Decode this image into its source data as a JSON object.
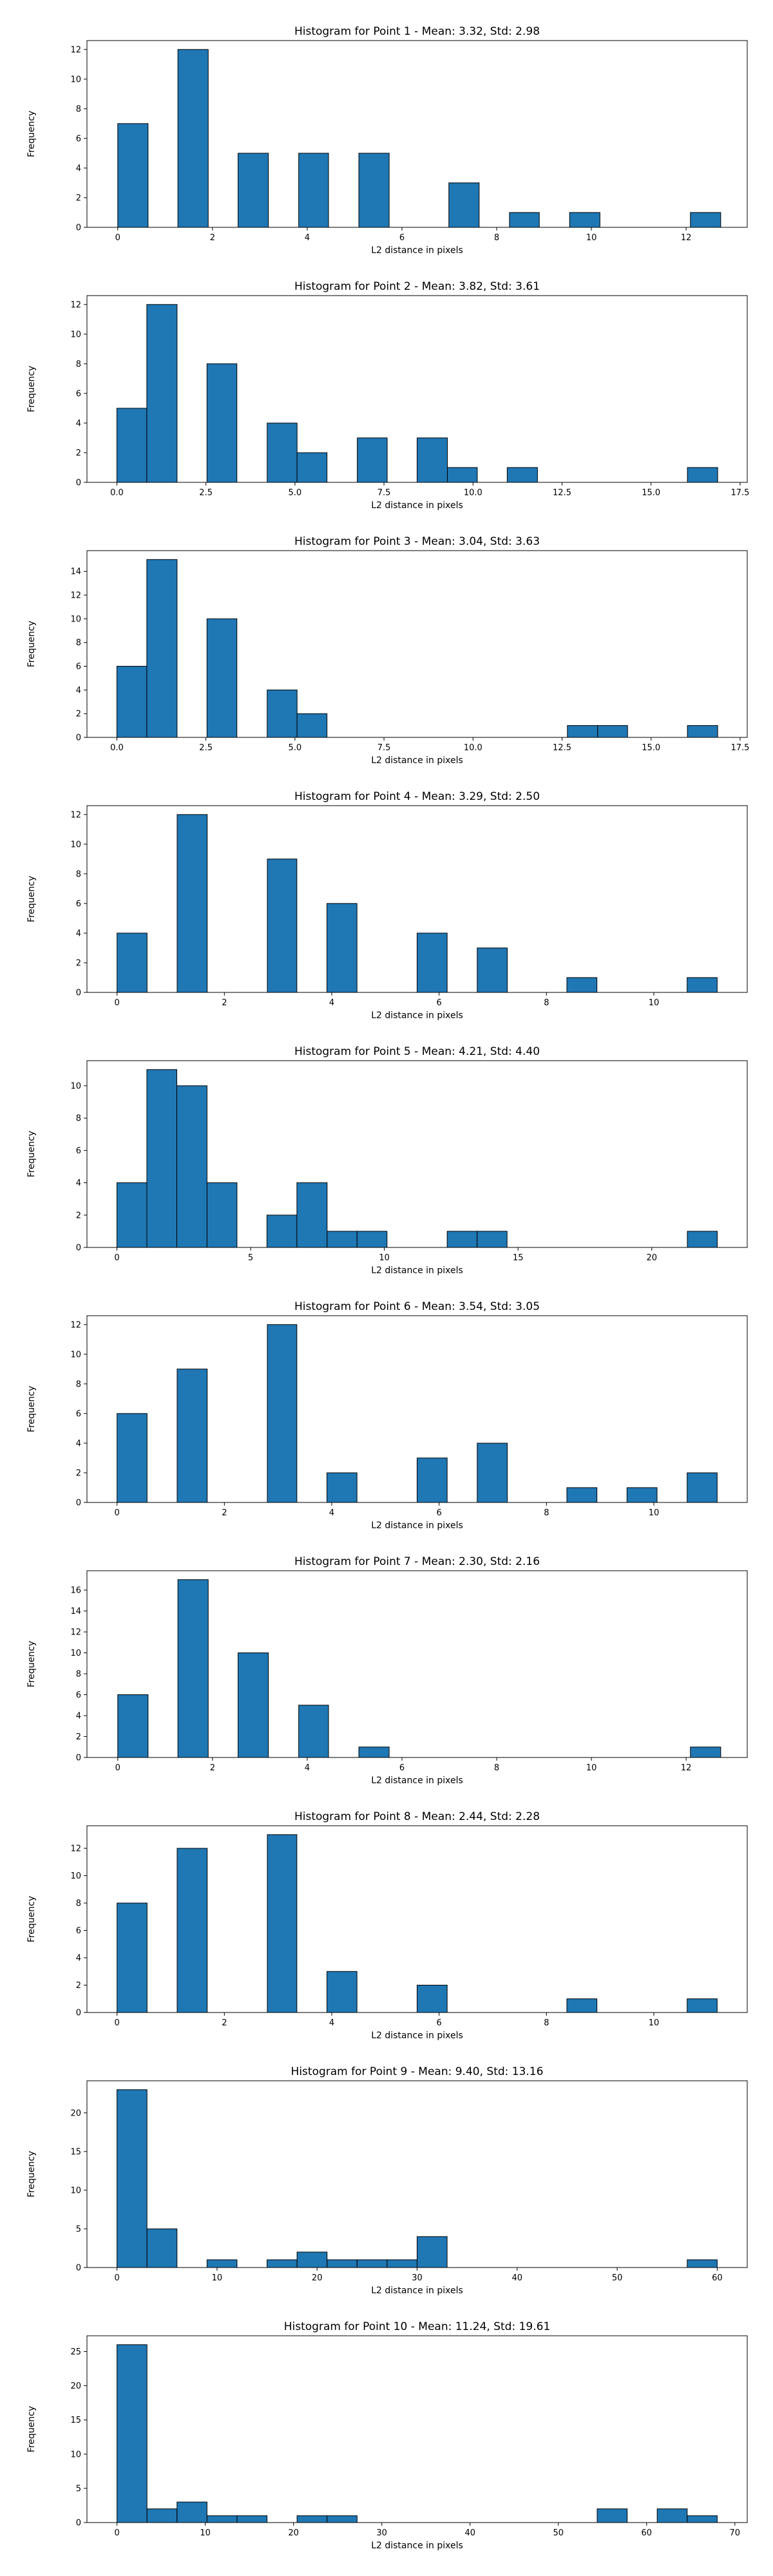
{
  "colors": {
    "bar_fill": "#1f77b4",
    "bar_edge": "#000000"
  },
  "chart_data": [
    {
      "type": "bar",
      "title": "Histogram for Point 1 - Mean: 3.32, Std: 2.98",
      "xlabel": "L2 distance in pixels",
      "ylabel": "Frequency",
      "xlim": [
        -0.65,
        13.29
      ],
      "ylim": [
        0,
        12.6
      ],
      "xticks": [
        0,
        2,
        4,
        6,
        8,
        10,
        12
      ],
      "yticks": [
        0,
        2,
        4,
        6,
        8,
        10,
        12
      ],
      "xtick_labels": [
        "0",
        "2",
        "4",
        "6",
        "8",
        "10",
        "12"
      ],
      "bins": [
        [
          0,
          0.64,
          7
        ],
        [
          1.27,
          1.91,
          12
        ],
        [
          2.54,
          3.18,
          5
        ],
        [
          3.82,
          4.45,
          5
        ],
        [
          5.09,
          5.73,
          5
        ],
        [
          6.99,
          7.63,
          3
        ],
        [
          8.27,
          8.9,
          1
        ],
        [
          9.54,
          10.18,
          1
        ],
        [
          12.09,
          12.73,
          1
        ]
      ]
    },
    {
      "type": "bar",
      "title": "Histogram for Point 2 - Mean: 3.82, Std: 3.61",
      "xlabel": "L2 distance in pixels",
      "ylabel": "Frequency",
      "xlim": [
        -0.84,
        17.7
      ],
      "ylim": [
        0,
        12.6
      ],
      "xticks": [
        0,
        2.5,
        5,
        7.5,
        10,
        12.5,
        15,
        17.5
      ],
      "yticks": [
        0,
        2,
        4,
        6,
        8,
        10,
        12
      ],
      "xtick_labels": [
        "0.0",
        "2.5",
        "5.0",
        "7.5",
        "10.0",
        "12.5",
        "15.0",
        "17.5"
      ],
      "bins": [
        [
          0,
          0.84,
          5
        ],
        [
          0.84,
          1.69,
          12
        ],
        [
          2.53,
          3.37,
          8
        ],
        [
          4.22,
          5.06,
          4
        ],
        [
          5.06,
          5.9,
          2
        ],
        [
          6.75,
          7.59,
          3
        ],
        [
          8.43,
          9.28,
          3
        ],
        [
          9.28,
          10.12,
          1
        ],
        [
          10.96,
          11.81,
          1
        ],
        [
          16.02,
          16.87,
          1
        ]
      ]
    },
    {
      "type": "bar",
      "title": "Histogram for Point 3 - Mean: 3.04, Std: 3.63",
      "xlabel": "L2 distance in pixels",
      "ylabel": "Frequency",
      "xlim": [
        -0.84,
        17.7
      ],
      "ylim": [
        0,
        15.75
      ],
      "xticks": [
        0,
        2.5,
        5,
        7.5,
        10,
        12.5,
        15,
        17.5
      ],
      "yticks": [
        0,
        2,
        4,
        6,
        8,
        10,
        12,
        14
      ],
      "xtick_labels": [
        "0.0",
        "2.5",
        "5.0",
        "7.5",
        "10.0",
        "12.5",
        "15.0",
        "17.5"
      ],
      "bins": [
        [
          0,
          0.84,
          6
        ],
        [
          0.84,
          1.69,
          15
        ],
        [
          2.53,
          3.37,
          10
        ],
        [
          4.22,
          5.06,
          4
        ],
        [
          5.06,
          5.9,
          2
        ],
        [
          12.65,
          13.5,
          1
        ],
        [
          13.5,
          14.34,
          1
        ],
        [
          16.02,
          16.87,
          1
        ]
      ]
    },
    {
      "type": "bar",
      "title": "Histogram for Point 4 - Mean: 3.29, Std: 2.50",
      "xlabel": "L2 distance in pixels",
      "ylabel": "Frequency",
      "xlim": [
        -0.56,
        11.74
      ],
      "ylim": [
        0,
        12.6
      ],
      "xticks": [
        0,
        2,
        4,
        6,
        8,
        10
      ],
      "yticks": [
        0,
        2,
        4,
        6,
        8,
        10,
        12
      ],
      "xtick_labels": [
        "0",
        "2",
        "4",
        "6",
        "8",
        "10"
      ],
      "bins": [
        [
          0,
          0.56,
          4
        ],
        [
          1.12,
          1.68,
          12
        ],
        [
          2.8,
          3.35,
          9
        ],
        [
          3.91,
          4.47,
          6
        ],
        [
          5.59,
          6.15,
          4
        ],
        [
          6.71,
          7.27,
          3
        ],
        [
          8.38,
          8.94,
          1
        ],
        [
          10.62,
          11.18,
          1
        ]
      ]
    },
    {
      "type": "bar",
      "title": "Histogram for Point 5 - Mean: 4.21, Std: 4.40",
      "xlabel": "L2 distance in pixels",
      "ylabel": "Frequency",
      "xlim": [
        -1.12,
        23.57
      ],
      "ylim": [
        0,
        11.55
      ],
      "xticks": [
        0,
        5,
        10,
        15,
        20
      ],
      "yticks": [
        0,
        2,
        4,
        6,
        8,
        10
      ],
      "xtick_labels": [
        "0",
        "5",
        "10",
        "15",
        "20"
      ],
      "bins": [
        [
          0,
          1.12,
          4
        ],
        [
          1.12,
          2.24,
          11
        ],
        [
          2.24,
          3.37,
          10
        ],
        [
          3.37,
          4.49,
          4
        ],
        [
          5.61,
          6.73,
          2
        ],
        [
          6.73,
          7.86,
          4
        ],
        [
          7.86,
          8.98,
          1
        ],
        [
          8.98,
          10.1,
          1
        ],
        [
          12.35,
          13.47,
          1
        ],
        [
          13.47,
          14.59,
          1
        ],
        [
          21.33,
          22.45,
          1
        ]
      ]
    },
    {
      "type": "bar",
      "title": "Histogram for Point 6 - Mean: 3.54, Std: 3.05",
      "xlabel": "L2 distance in pixels",
      "ylabel": "Frequency",
      "xlim": [
        -0.56,
        11.74
      ],
      "ylim": [
        0,
        12.6
      ],
      "xticks": [
        0,
        2,
        4,
        6,
        8,
        10
      ],
      "yticks": [
        0,
        2,
        4,
        6,
        8,
        10,
        12
      ],
      "xtick_labels": [
        "0",
        "2",
        "4",
        "6",
        "8",
        "10"
      ],
      "bins": [
        [
          0,
          0.56,
          6
        ],
        [
          1.12,
          1.68,
          9
        ],
        [
          2.8,
          3.35,
          12
        ],
        [
          3.91,
          4.47,
          2
        ],
        [
          5.59,
          6.15,
          3
        ],
        [
          6.71,
          7.27,
          4
        ],
        [
          8.38,
          8.94,
          1
        ],
        [
          9.5,
          10.06,
          1
        ],
        [
          10.62,
          11.18,
          2
        ]
      ]
    },
    {
      "type": "bar",
      "title": "Histogram for Point 7 - Mean: 2.30, Std: 2.16",
      "xlabel": "L2 distance in pixels",
      "ylabel": "Frequency",
      "xlim": [
        -0.65,
        13.29
      ],
      "ylim": [
        0,
        17.85
      ],
      "xticks": [
        0,
        2,
        4,
        6,
        8,
        10,
        12
      ],
      "yticks": [
        0,
        2,
        4,
        6,
        8,
        10,
        12,
        14,
        16
      ],
      "xtick_labels": [
        "0",
        "2",
        "4",
        "6",
        "8",
        "10",
        "12"
      ],
      "bins": [
        [
          0,
          0.64,
          6
        ],
        [
          1.27,
          1.91,
          17
        ],
        [
          2.54,
          3.18,
          10
        ],
        [
          3.82,
          4.45,
          5
        ],
        [
          5.09,
          5.73,
          1
        ],
        [
          12.09,
          12.73,
          1
        ]
      ]
    },
    {
      "type": "bar",
      "title": "Histogram for Point 8 - Mean: 2.44, Std: 2.28",
      "xlabel": "L2 distance in pixels",
      "ylabel": "Frequency",
      "xlim": [
        -0.56,
        11.74
      ],
      "ylim": [
        0,
        13.65
      ],
      "xticks": [
        0,
        2,
        4,
        6,
        8,
        10
      ],
      "yticks": [
        0,
        2,
        4,
        6,
        8,
        10,
        12
      ],
      "xtick_labels": [
        "0",
        "2",
        "4",
        "6",
        "8",
        "10"
      ],
      "bins": [
        [
          0,
          0.56,
          8
        ],
        [
          1.12,
          1.68,
          12
        ],
        [
          2.8,
          3.35,
          13
        ],
        [
          3.91,
          4.47,
          3
        ],
        [
          5.59,
          6.15,
          2
        ],
        [
          8.38,
          8.94,
          1
        ],
        [
          10.62,
          11.18,
          1
        ]
      ]
    },
    {
      "type": "bar",
      "title": "Histogram for Point 9 - Mean: 9.40, Std: 13.16",
      "xlabel": "L2 distance in pixels",
      "ylabel": "Frequency",
      "xlim": [
        -3.0,
        63.0
      ],
      "ylim": [
        0,
        24.15
      ],
      "xticks": [
        0,
        10,
        20,
        30,
        40,
        50,
        60
      ],
      "yticks": [
        0,
        5,
        10,
        15,
        20
      ],
      "xtick_labels": [
        "0",
        "10",
        "20",
        "30",
        "40",
        "50",
        "60"
      ],
      "bins": [
        [
          0,
          3,
          23
        ],
        [
          3,
          6,
          5
        ],
        [
          9,
          12,
          1
        ],
        [
          15,
          18,
          1
        ],
        [
          18,
          21,
          2
        ],
        [
          21,
          24,
          1
        ],
        [
          24,
          27,
          1
        ],
        [
          27,
          30,
          1
        ],
        [
          30,
          33,
          4
        ],
        [
          57,
          60,
          1
        ]
      ]
    },
    {
      "type": "bar",
      "title": "Histogram for Point 10 - Mean: 11.24, Std: 19.61",
      "xlabel": "L2 distance in pixels",
      "ylabel": "Frequency",
      "xlim": [
        -3.4,
        71.4
      ],
      "ylim": [
        0,
        27.3
      ],
      "xticks": [
        0,
        10,
        20,
        30,
        40,
        50,
        60,
        70
      ],
      "yticks": [
        0,
        5,
        10,
        15,
        20,
        25
      ],
      "xtick_labels": [
        "0",
        "10",
        "20",
        "30",
        "40",
        "50",
        "60",
        "70"
      ],
      "bins": [
        [
          0,
          3.4,
          26
        ],
        [
          3.4,
          6.8,
          2
        ],
        [
          6.8,
          10.2,
          3
        ],
        [
          10.2,
          13.6,
          1
        ],
        [
          13.6,
          17.0,
          1
        ],
        [
          20.4,
          23.8,
          1
        ],
        [
          23.8,
          27.2,
          1
        ],
        [
          54.4,
          57.8,
          2
        ],
        [
          61.2,
          64.6,
          2
        ],
        [
          64.6,
          68.0,
          1
        ]
      ]
    }
  ]
}
